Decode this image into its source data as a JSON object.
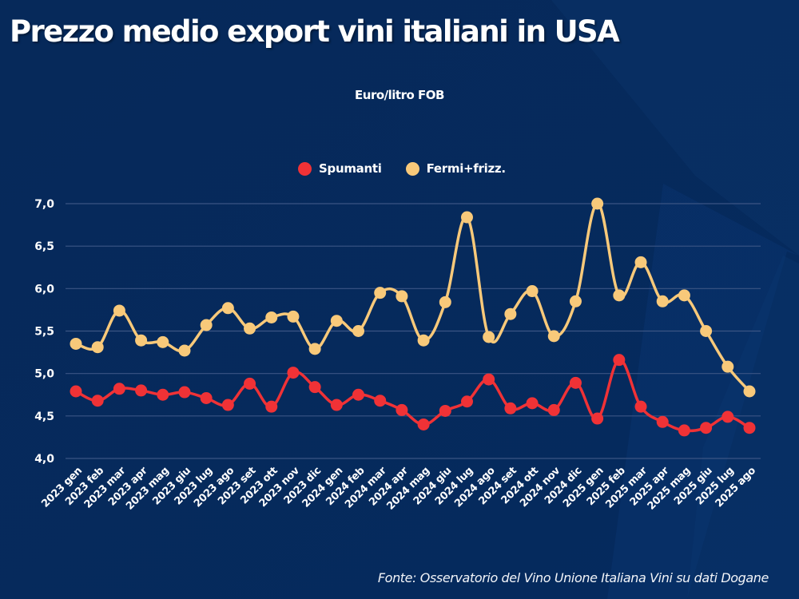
{
  "header": {
    "title": "Prezzo medio export vini italiani in USA",
    "subtitle": "Euro/litro FOB"
  },
  "legend": [
    {
      "label": "Spumanti",
      "color": "#f03236"
    },
    {
      "label": "Fermi+frizz.",
      "color": "#f8c97a"
    }
  ],
  "footer": {
    "source": "Fonte: Osservatorio del Vino Unione Italiana Vini su dati Dogane"
  },
  "colors": {
    "background": "#062a5c",
    "gridline": "#3b5584",
    "text": "#ffffff"
  },
  "chart_data": {
    "type": "line",
    "title": "Prezzo medio export vini italiani in USA",
    "subtitle": "Euro/litro FOB",
    "xlabel": "",
    "ylabel": "Euro/litro FOB",
    "ylim": [
      4.0,
      7.0
    ],
    "yticks": [
      4.0,
      4.5,
      5.0,
      5.5,
      6.0,
      6.5,
      7.0
    ],
    "ytick_labels": [
      "4,0",
      "4,5",
      "5,0",
      "5,5",
      "6,0",
      "6,5",
      "7,0"
    ],
    "grid": "horizontal",
    "legend_position": "top-center",
    "categories": [
      "2023 gen",
      "2023 feb",
      "2023 mar",
      "2023 apr",
      "2023 mag",
      "2023 giu",
      "2023 lug",
      "2023 ago",
      "2023 set",
      "2023 ott",
      "2023 nov",
      "2023 dic",
      "2024 gen",
      "2024 feb",
      "2024 mar",
      "2024 apr",
      "2024 mag",
      "2024 giu",
      "2024 lug",
      "2024 ago",
      "2024 set",
      "2024 ott",
      "2024 nov",
      "2024 dic",
      "2025 gen",
      "2025 feb",
      "2025 mar",
      "2025 apr",
      "2025 mag",
      "2025 giu",
      "2025 lug",
      "2025 ago"
    ],
    "series": [
      {
        "name": "Spumanti",
        "color": "#f03236",
        "values": [
          4.79,
          4.68,
          4.82,
          4.8,
          4.75,
          4.78,
          4.71,
          4.63,
          4.88,
          4.61,
          5.01,
          4.84,
          4.63,
          4.75,
          4.68,
          4.57,
          4.4,
          4.56,
          4.67,
          4.93,
          4.59,
          4.65,
          4.57,
          4.89,
          4.47,
          5.16,
          4.61,
          4.43,
          4.33,
          4.36,
          4.49,
          4.36
        ]
      },
      {
        "name": "Fermi+frizz.",
        "color": "#f8c97a",
        "values": [
          5.35,
          5.31,
          5.74,
          5.39,
          5.37,
          5.27,
          5.57,
          5.77,
          5.53,
          5.66,
          5.67,
          5.29,
          5.62,
          5.5,
          5.95,
          5.91,
          5.39,
          5.84,
          6.84,
          5.43,
          5.7,
          5.97,
          5.44,
          5.85,
          7.0,
          5.92,
          6.31,
          5.85,
          5.92,
          5.5,
          5.08,
          4.79
        ]
      }
    ]
  }
}
